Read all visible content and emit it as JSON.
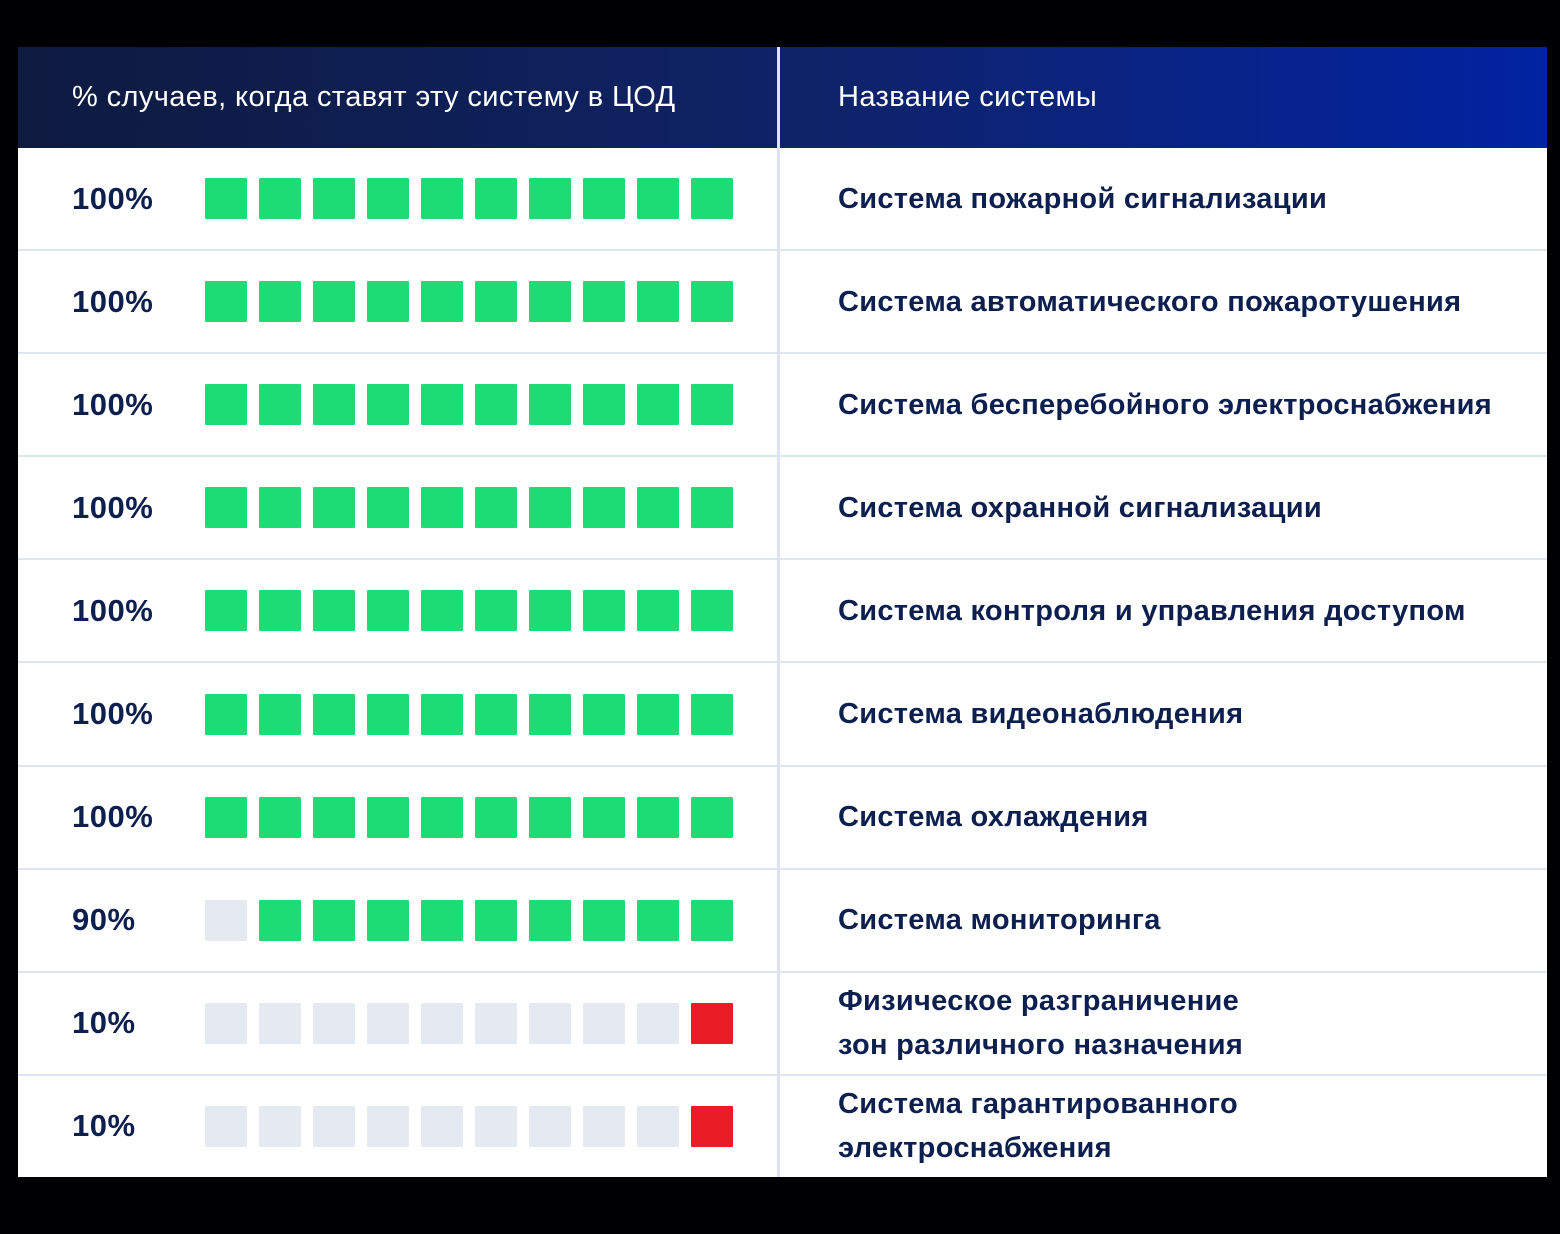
{
  "header": {
    "left_label": "% случаев, когда ставят эту систему в ЦОД",
    "right_label": "Название системы"
  },
  "colors": {
    "page_background": "#000003",
    "header_gradient_from": "#0e1a3f",
    "header_gradient_to": "#0223a2",
    "header_text": "#ffffff",
    "body_text": "#0d1f4e",
    "unit_installed": "#1ddc74",
    "unit_empty": "#e4e9f2",
    "unit_rare": "#ea1c25"
  },
  "rows": [
    {
      "percent": "100%",
      "name": "Система пожарной сигнализации",
      "cells": [
        "green",
        "green",
        "green",
        "green",
        "green",
        "green",
        "green",
        "green",
        "green",
        "green"
      ]
    },
    {
      "percent": "100%",
      "name": "Система автоматического пожаротушения",
      "cells": [
        "green",
        "green",
        "green",
        "green",
        "green",
        "green",
        "green",
        "green",
        "green",
        "green"
      ]
    },
    {
      "percent": "100%",
      "name": "Система бесперебойного электроснабжения",
      "cells": [
        "green",
        "green",
        "green",
        "green",
        "green",
        "green",
        "green",
        "green",
        "green",
        "green"
      ]
    },
    {
      "percent": "100%",
      "name": "Система охранной сигнализации",
      "cells": [
        "green",
        "green",
        "green",
        "green",
        "green",
        "green",
        "green",
        "green",
        "green",
        "green"
      ]
    },
    {
      "percent": "100%",
      "name": "Система контроля и управления доступом",
      "cells": [
        "green",
        "green",
        "green",
        "green",
        "green",
        "green",
        "green",
        "green",
        "green",
        "green"
      ]
    },
    {
      "percent": "100%",
      "name": "Система видеонаблюдения",
      "cells": [
        "green",
        "green",
        "green",
        "green",
        "green",
        "green",
        "green",
        "green",
        "green",
        "green"
      ]
    },
    {
      "percent": "100%",
      "name": "Система охлаждения",
      "cells": [
        "green",
        "green",
        "green",
        "green",
        "green",
        "green",
        "green",
        "green",
        "green",
        "green"
      ]
    },
    {
      "percent": "90%",
      "name": "Система мониторинга",
      "cells": [
        "gray",
        "green",
        "green",
        "green",
        "green",
        "green",
        "green",
        "green",
        "green",
        "green"
      ]
    },
    {
      "percent": "10%",
      "name": "Физическое разграничение\nзон различного назначения",
      "cells": [
        "gray",
        "gray",
        "gray",
        "gray",
        "gray",
        "gray",
        "gray",
        "gray",
        "gray",
        "red"
      ]
    },
    {
      "percent": "10%",
      "name": "Система гарантированного\nэлектроснабжения",
      "cells": [
        "gray",
        "gray",
        "gray",
        "gray",
        "gray",
        "gray",
        "gray",
        "gray",
        "gray",
        "red"
      ]
    }
  ],
  "chart_data": {
    "type": "bar",
    "variant": "unit-pictograph, 10 squares per row, each square = 10%",
    "title": "",
    "xlabel": "% случаев, когда ставят эту систему в ЦОД",
    "ylabel": "Название системы",
    "categories": [
      "Система пожарной сигнализации",
      "Система автоматического пожаротушения",
      "Система бесперебойного электроснабжения",
      "Система охранной сигнализации",
      "Система контроля и управления доступом",
      "Система видеонаблюдения",
      "Система охлаждения",
      "Система мониторинга",
      "Физическое разграничение зон различного назначения",
      "Система гарантированного электроснабжения"
    ],
    "values": [
      100,
      100,
      100,
      100,
      100,
      100,
      100,
      90,
      10,
      10
    ],
    "xlim": [
      0,
      100
    ],
    "units_per_row": 10,
    "unit_value": 10,
    "legend_position": "none",
    "grid": false,
    "colors": {
      "filled": "#1ddc74",
      "empty": "#e4e9f2",
      "low_value_highlight": "#ea1c25"
    }
  }
}
